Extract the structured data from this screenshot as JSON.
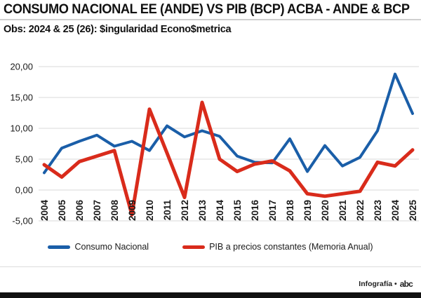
{
  "header": {
    "title": "CONSUMO NACIONAL EE (ANDE) VS PIB (BCP) ACBA - ANDE & BCP",
    "subtitle": "Obs: 2024 & 25 (26): $ingularidad Econo$metrica"
  },
  "legend": {
    "items": [
      {
        "label": "Consumo Nacional",
        "color": "#1A5EA8"
      },
      {
        "label": "PIB a precios constantes (Memoria Anual)",
        "color": "#D92B1B"
      }
    ]
  },
  "footer": {
    "credit": "Infografía •",
    "brand": "abc"
  },
  "colors": {
    "grid": "#D9D9D9",
    "axis_text": "#1a1a1a",
    "blue": "#1A5EA8",
    "red": "#D92B1B"
  },
  "chart_data": {
    "type": "line",
    "title": "CONSUMO NACIONAL EE (ANDE) VS PIB (BCP) ACBA - ANDE & BCP",
    "x": [
      "2004",
      "2005",
      "2006",
      "2007",
      "2008",
      "2009",
      "2010",
      "2011",
      "2012",
      "2013",
      "2014",
      "2015",
      "2016",
      "2017",
      "2018",
      "2019",
      "2020",
      "2021",
      "2022",
      "2023",
      "2024",
      "2025"
    ],
    "series": [
      {
        "name": "Consumo Nacional",
        "color": "#1A5EA8",
        "width": 4,
        "values": [
          2.8,
          6.8,
          7.9,
          8.9,
          7.1,
          7.9,
          6.4,
          10.4,
          8.6,
          9.6,
          8.7,
          5.5,
          4.5,
          4.4,
          8.3,
          3.0,
          7.2,
          3.9,
          5.3,
          9.6,
          18.8,
          12.4
        ]
      },
      {
        "name": "PIB a precios constantes (Memoria Anual)",
        "color": "#D92B1B",
        "width": 5,
        "values": [
          4.1,
          2.1,
          4.6,
          5.5,
          6.4,
          -4.0,
          13.1,
          6.0,
          -1.2,
          14.2,
          5.0,
          3.0,
          4.2,
          4.7,
          3.1,
          -0.6,
          -1.0,
          -0.6,
          -0.2,
          4.5,
          3.9,
          6.5
        ]
      }
    ],
    "xlabel": "",
    "ylabel": "",
    "ylim": [
      -5,
      20
    ],
    "y_axis": {
      "ticks": [
        {
          "label": "20,00",
          "value": 20
        },
        {
          "label": "15,00",
          "value": 15
        },
        {
          "label": "10,00",
          "value": 10
        },
        {
          "label": "5,00",
          "value": 5
        },
        {
          "label": "0,00",
          "value": 0
        },
        {
          "label": "-5,00",
          "value": -5
        }
      ]
    },
    "grid": true,
    "legend_position": "bottom"
  }
}
